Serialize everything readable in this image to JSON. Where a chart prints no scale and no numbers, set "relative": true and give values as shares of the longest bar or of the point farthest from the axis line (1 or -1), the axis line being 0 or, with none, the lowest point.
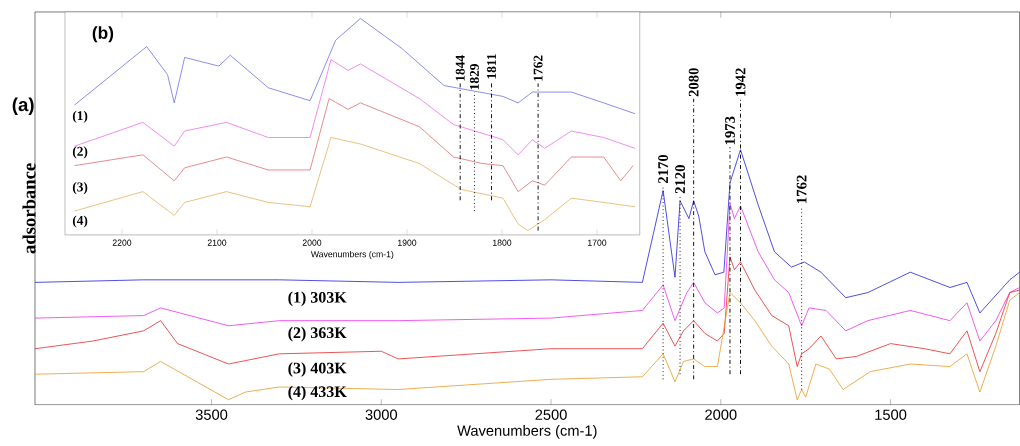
{
  "chart_data": [
    {
      "type": "line",
      "relative": true,
      "xlabel": "Wavenumbers (cm-1)",
      "ylabel": "adsorbance",
      "xlim": [
        4020,
        1120
      ],
      "xticks": [
        3500,
        3000,
        2500,
        2000,
        1500
      ],
      "annotations": [
        "(a)"
      ],
      "series": [
        {
          "name": "(1) 303K",
          "color": "#2222dd",
          "x": [
            4020,
            3700,
            3300,
            2950,
            2500,
            2231,
            2170,
            2135,
            2120,
            2094,
            2080,
            2065,
            2047,
            2017,
            1991,
            1973,
            1942,
            1889,
            1842,
            1792,
            1754,
            1705,
            1632,
            1567,
            1442,
            1325,
            1275,
            1237,
            1149,
            1120
          ],
          "values": [
            0.48,
            0.49,
            0.49,
            0.48,
            0.49,
            0.48,
            0.84,
            0.5,
            0.8,
            0.73,
            0.8,
            0.74,
            0.6,
            0.51,
            0.52,
            0.87,
            1.0,
            0.78,
            0.6,
            0.54,
            0.56,
            0.52,
            0.42,
            0.44,
            0.52,
            0.46,
            0.48,
            0.36,
            0.49,
            0.52
          ]
        },
        {
          "name": "(2) 363K",
          "color": "#ee33ee",
          "x": [
            4020,
            3700,
            3650,
            3450,
            3300,
            2950,
            2500,
            2231,
            2170,
            2135,
            2100,
            2080,
            2047,
            2010,
            1990,
            1973,
            1960,
            1942,
            1890,
            1842,
            1800,
            1762,
            1740,
            1690,
            1632,
            1567,
            1442,
            1325,
            1275,
            1237,
            1190,
            1149,
            1120
          ],
          "values": [
            0.34,
            0.35,
            0.38,
            0.31,
            0.33,
            0.33,
            0.34,
            0.37,
            0.47,
            0.33,
            0.44,
            0.48,
            0.4,
            0.36,
            0.38,
            0.79,
            0.73,
            0.78,
            0.6,
            0.49,
            0.44,
            0.31,
            0.38,
            0.37,
            0.29,
            0.33,
            0.37,
            0.33,
            0.4,
            0.25,
            0.33,
            0.44,
            0.46
          ]
        },
        {
          "name": "(3) 403K",
          "color": "#e82a2a",
          "x": [
            4020,
            3850,
            3700,
            3650,
            3600,
            3450,
            3300,
            3000,
            2950,
            2500,
            2231,
            2170,
            2135,
            2110,
            2080,
            2047,
            2010,
            1990,
            1973,
            1960,
            1942,
            1900,
            1850,
            1800,
            1775,
            1762,
            1740,
            1705,
            1660,
            1600,
            1500,
            1400,
            1325,
            1275,
            1237,
            1190,
            1149,
            1120
          ],
          "values": [
            0.22,
            0.25,
            0.29,
            0.33,
            0.24,
            0.16,
            0.2,
            0.21,
            0.18,
            0.22,
            0.22,
            0.32,
            0.23,
            0.29,
            0.33,
            0.28,
            0.25,
            0.28,
            0.58,
            0.53,
            0.56,
            0.45,
            0.35,
            0.31,
            0.15,
            0.2,
            0.22,
            0.27,
            0.18,
            0.19,
            0.24,
            0.22,
            0.2,
            0.29,
            0.13,
            0.28,
            0.44,
            0.45
          ]
        },
        {
          "name": "(4) 433K",
          "color": "#e89a28",
          "x": [
            4020,
            3700,
            3650,
            3450,
            3400,
            3300,
            2950,
            2500,
            2231,
            2170,
            2135,
            2110,
            2080,
            2047,
            2010,
            1973,
            1942,
            1900,
            1850,
            1800,
            1775,
            1762,
            1750,
            1720,
            1680,
            1640,
            1560,
            1442,
            1325,
            1275,
            1237,
            1190,
            1149,
            1120
          ],
          "values": [
            0.12,
            0.13,
            0.17,
            0.02,
            0.05,
            0.07,
            0.06,
            0.1,
            0.11,
            0.2,
            0.09,
            0.17,
            0.18,
            0.15,
            0.15,
            0.44,
            0.4,
            0.33,
            0.23,
            0.16,
            0.02,
            0.06,
            0.03,
            0.16,
            0.14,
            0.06,
            0.13,
            0.16,
            0.15,
            0.2,
            0.05,
            0.23,
            0.41,
            0.44
          ]
        }
      ],
      "ref_lines": [
        {
          "axis": "x",
          "value": 2170,
          "label": "2170",
          "line_style": "dotted"
        },
        {
          "axis": "x",
          "value": 2120,
          "label": "2120",
          "line_style": "dotted"
        },
        {
          "axis": "x",
          "value": 2080,
          "label": "2080",
          "line_style": "dashdot"
        },
        {
          "axis": "x",
          "value": 1973,
          "label": "1973",
          "line_style": "dashdot"
        },
        {
          "axis": "x",
          "value": 1942,
          "label": "1942",
          "line_style": "dashdot"
        },
        {
          "axis": "x",
          "value": 1762,
          "label": "1762",
          "line_style": "dotted"
        }
      ]
    },
    {
      "type": "line",
      "relative": true,
      "xlabel": "Wavenumbers (cm-1)",
      "xlim": [
        2260,
        1655
      ],
      "xticks": [
        2200,
        2100,
        2000,
        1900,
        1800,
        1700
      ],
      "annotations": [
        "(b)"
      ],
      "series": [
        {
          "name": "(1)",
          "color": "#7070ee",
          "x": [
            2250,
            2174,
            2152,
            2145,
            2134,
            2098,
            2086,
            2046,
            2002,
            1975,
            1949,
            1905,
            1861,
            1799,
            1783,
            1768,
            1727,
            1693,
            1660
          ],
          "values": [
            0.6,
            0.87,
            0.74,
            0.61,
            0.82,
            0.78,
            0.83,
            0.68,
            0.62,
            0.9,
            1.0,
            0.86,
            0.69,
            0.64,
            0.61,
            0.66,
            0.66,
            0.61,
            0.56
          ]
        },
        {
          "name": "(2)",
          "color": "#ee70ee",
          "x": [
            2250,
            2178,
            2145,
            2134,
            2090,
            2046,
            2002,
            1980,
            1962,
            1949,
            1887,
            1851,
            1799,
            1783,
            1768,
            1755,
            1727,
            1693,
            1660
          ],
          "values": [
            0.41,
            0.52,
            0.41,
            0.48,
            0.52,
            0.45,
            0.45,
            0.81,
            0.76,
            0.79,
            0.63,
            0.51,
            0.44,
            0.37,
            0.44,
            0.4,
            0.48,
            0.45,
            0.4
          ]
        },
        {
          "name": "(3)",
          "color": "#e07070",
          "x": [
            2250,
            2178,
            2145,
            2134,
            2090,
            2046,
            2002,
            1982,
            1962,
            1949,
            1887,
            1851,
            1821,
            1799,
            1783,
            1768,
            1755,
            1727,
            1693,
            1675,
            1662
          ],
          "values": [
            0.32,
            0.37,
            0.25,
            0.31,
            0.36,
            0.3,
            0.3,
            0.63,
            0.58,
            0.61,
            0.5,
            0.36,
            0.33,
            0.32,
            0.2,
            0.25,
            0.23,
            0.36,
            0.36,
            0.25,
            0.32
          ]
        },
        {
          "name": "(4)",
          "color": "#eab060",
          "x": [
            2250,
            2178,
            2145,
            2134,
            2090,
            2046,
            2002,
            1980,
            1949,
            1887,
            1843,
            1799,
            1783,
            1773,
            1755,
            1727,
            1693,
            1660
          ],
          "values": [
            0.11,
            0.2,
            0.09,
            0.15,
            0.2,
            0.15,
            0.13,
            0.45,
            0.42,
            0.33,
            0.21,
            0.17,
            0.05,
            0.02,
            0.07,
            0.17,
            0.15,
            0.13
          ]
        }
      ],
      "ref_lines": [
        {
          "axis": "x",
          "value": 1844,
          "label": "1844",
          "line_style": "dashdot"
        },
        {
          "axis": "x",
          "value": 1829,
          "label": "1829",
          "line_style": "dotted"
        },
        {
          "axis": "x",
          "value": 1811,
          "label": "1811",
          "line_style": "dashdot"
        },
        {
          "axis": "x",
          "value": 1762,
          "label": "1762",
          "line_style": "dashdot"
        }
      ]
    }
  ]
}
